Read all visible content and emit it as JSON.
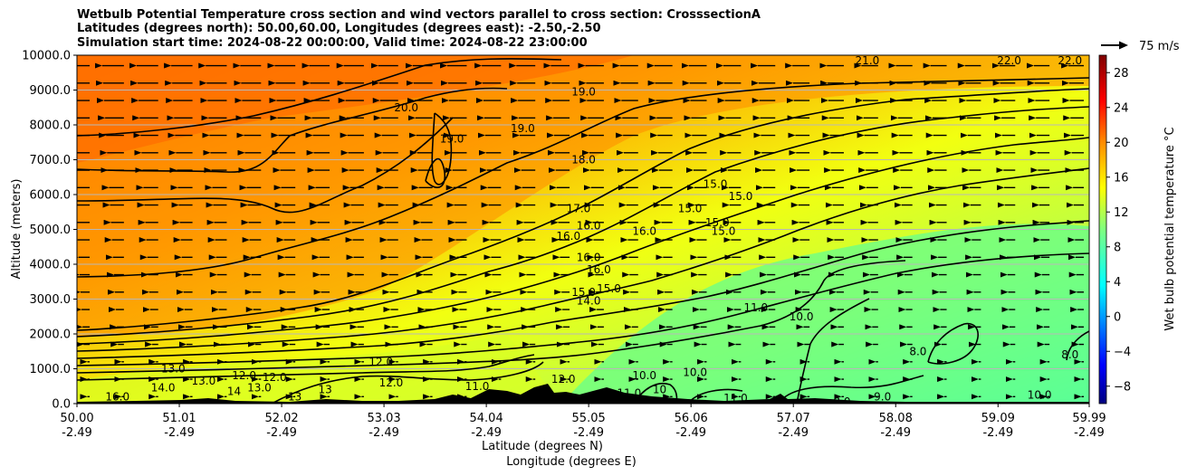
{
  "chart_data": {
    "type": "contour",
    "title": [
      "Wetbulb Potential Temperature cross section and wind vectors parallel to cross section: CrosssectionA",
      "Latitudes (degrees north): 50.00,60.00, Longitudes (degrees east): -2.50,-2.50",
      "Simulation start time: 2024-08-22 00:00:00, Valid time: 2024-08-22 23:00:00"
    ],
    "xlabel": [
      "Latitude (degrees N)",
      "Longitude (degrees E)"
    ],
    "ylabel": "Altitude (meters)",
    "x_ticks": [
      {
        "lat": 50.0,
        "lat_label": "50.00",
        "lon_label": "-2.49"
      },
      {
        "lat": 51.01,
        "lat_label": "51.01",
        "lon_label": "-2.49"
      },
      {
        "lat": 52.02,
        "lat_label": "52.02",
        "lon_label": "-2.49"
      },
      {
        "lat": 53.03,
        "lat_label": "53.03",
        "lon_label": "-2.49"
      },
      {
        "lat": 54.04,
        "lat_label": "54.04",
        "lon_label": "-2.49"
      },
      {
        "lat": 55.05,
        "lat_label": "55.05",
        "lon_label": "-2.49"
      },
      {
        "lat": 56.06,
        "lat_label": "56.06",
        "lon_label": "-2.49"
      },
      {
        "lat": 57.07,
        "lat_label": "57.07",
        "lon_label": "-2.49"
      },
      {
        "lat": 58.08,
        "lat_label": "58.08",
        "lon_label": "-2.49"
      },
      {
        "lat": 59.09,
        "lat_label": "59.09",
        "lon_label": "-2.49"
      },
      {
        "lat": 59.99,
        "lat_label": "59.99",
        "lon_label": "-2.49"
      }
    ],
    "xlim": [
      50.0,
      59.99
    ],
    "ylim": [
      0,
      10000
    ],
    "y_ticks": [
      {
        "value": 0,
        "label": "0.0"
      },
      {
        "value": 1000,
        "label": "1000.0"
      },
      {
        "value": 2000,
        "label": "2000.0"
      },
      {
        "value": 3000,
        "label": "3000.0"
      },
      {
        "value": 4000,
        "label": "4000.0"
      },
      {
        "value": 5000,
        "label": "5000.0"
      },
      {
        "value": 6000,
        "label": "6000.0"
      },
      {
        "value": 7000,
        "label": "7000.0"
      },
      {
        "value": 8000,
        "label": "8000.0"
      },
      {
        "value": 9000,
        "label": "9000.0"
      },
      {
        "value": 10000,
        "label": "10000.0"
      }
    ],
    "grid": "horizontal",
    "colorbar": {
      "label": "Wet bulb potential temperature °C",
      "range": [
        -10,
        30
      ],
      "ticks": [
        -8,
        -4,
        0,
        4,
        8,
        12,
        16,
        20,
        24,
        28
      ],
      "tick_labels": [
        "−8",
        "−4",
        "0",
        "4",
        "8",
        "12",
        "16",
        "20",
        "24",
        "28"
      ],
      "colormap": "jet",
      "colors": [
        "#00007f",
        "#0000ff",
        "#007fff",
        "#00ffff",
        "#7fff7f",
        "#ffff00",
        "#ff7f00",
        "#ff0000",
        "#7f0000"
      ]
    },
    "quiver_key": {
      "label": "75 m/s"
    },
    "contour_labels": [
      {
        "text": "21.0",
        "lat": 57.8,
        "alt": 9850
      },
      {
        "text": "22.0",
        "lat": 59.2,
        "alt": 9850
      },
      {
        "text": "22.0",
        "lat": 59.8,
        "alt": 9850
      },
      {
        "text": "20.0",
        "lat": 53.25,
        "alt": 8500
      },
      {
        "text": "19.0",
        "lat": 55.0,
        "alt": 8950
      },
      {
        "text": "19.0",
        "lat": 54.4,
        "alt": 7900
      },
      {
        "text": "19.0",
        "lat": 53.7,
        "alt": 7600
      },
      {
        "text": "18.0",
        "lat": 55.0,
        "alt": 7000
      },
      {
        "text": "17.0",
        "lat": 54.95,
        "alt": 5600
      },
      {
        "text": "16.0",
        "lat": 55.05,
        "alt": 5100
      },
      {
        "text": "16.0",
        "lat": 54.85,
        "alt": 4800
      },
      {
        "text": "16.0",
        "lat": 55.05,
        "alt": 4200
      },
      {
        "text": "16.0",
        "lat": 55.15,
        "alt": 3850
      },
      {
        "text": "15.0",
        "lat": 55.0,
        "alt": 3200
      },
      {
        "text": "15.0",
        "lat": 55.25,
        "alt": 3300
      },
      {
        "text": "14.0",
        "lat": 55.05,
        "alt": 2950
      },
      {
        "text": "16.0",
        "lat": 55.6,
        "alt": 4950
      },
      {
        "text": "15.0",
        "lat": 56.3,
        "alt": 6300
      },
      {
        "text": "15.0",
        "lat": 56.55,
        "alt": 5950
      },
      {
        "text": "15.0",
        "lat": 56.05,
        "alt": 5600
      },
      {
        "text": "15.0",
        "lat": 56.32,
        "alt": 5200
      },
      {
        "text": "15.0",
        "lat": 56.38,
        "alt": 4950
      },
      {
        "text": "11.0",
        "lat": 56.7,
        "alt": 2750
      },
      {
        "text": "10.0",
        "lat": 57.15,
        "alt": 2500
      },
      {
        "text": "8.0",
        "lat": 58.3,
        "alt": 1500
      },
      {
        "text": "8.0",
        "lat": 59.8,
        "alt": 1400
      },
      {
        "text": "12.0",
        "lat": 53.0,
        "alt": 1200
      },
      {
        "text": "13.0",
        "lat": 50.95,
        "alt": 1000
      },
      {
        "text": "13.0",
        "lat": 51.25,
        "alt": 650
      },
      {
        "text": "14.0",
        "lat": 50.85,
        "alt": 450
      },
      {
        "text": "16.0",
        "lat": 50.4,
        "alt": 200
      },
      {
        "text": "14",
        "lat": 51.55,
        "alt": 350
      },
      {
        "text": "12.0",
        "lat": 51.95,
        "alt": 750
      },
      {
        "text": "12.0",
        "lat": 51.65,
        "alt": 800
      },
      {
        "text": "13.0",
        "lat": 51.8,
        "alt": 450
      },
      {
        "text": "13",
        "lat": 52.45,
        "alt": 400
      },
      {
        "text": "13",
        "lat": 52.15,
        "alt": 200
      },
      {
        "text": "12.0",
        "lat": 53.1,
        "alt": 600
      },
      {
        "text": "11.0",
        "lat": 53.95,
        "alt": 500
      },
      {
        "text": "12.0",
        "lat": 54.8,
        "alt": 700
      },
      {
        "text": "11.0",
        "lat": 55.45,
        "alt": 300
      },
      {
        "text": "10.0",
        "lat": 55.6,
        "alt": 800
      },
      {
        "text": "10.0",
        "lat": 56.1,
        "alt": 900
      },
      {
        "text": "10",
        "lat": 55.75,
        "alt": 400
      },
      {
        "text": "11.0",
        "lat": 56.5,
        "alt": 150
      },
      {
        "text": "8.0",
        "lat": 57.55,
        "alt": 50
      },
      {
        "text": "9.0",
        "lat": 57.95,
        "alt": 200
      },
      {
        "text": "10.0",
        "lat": 59.5,
        "alt": 250
      }
    ]
  }
}
